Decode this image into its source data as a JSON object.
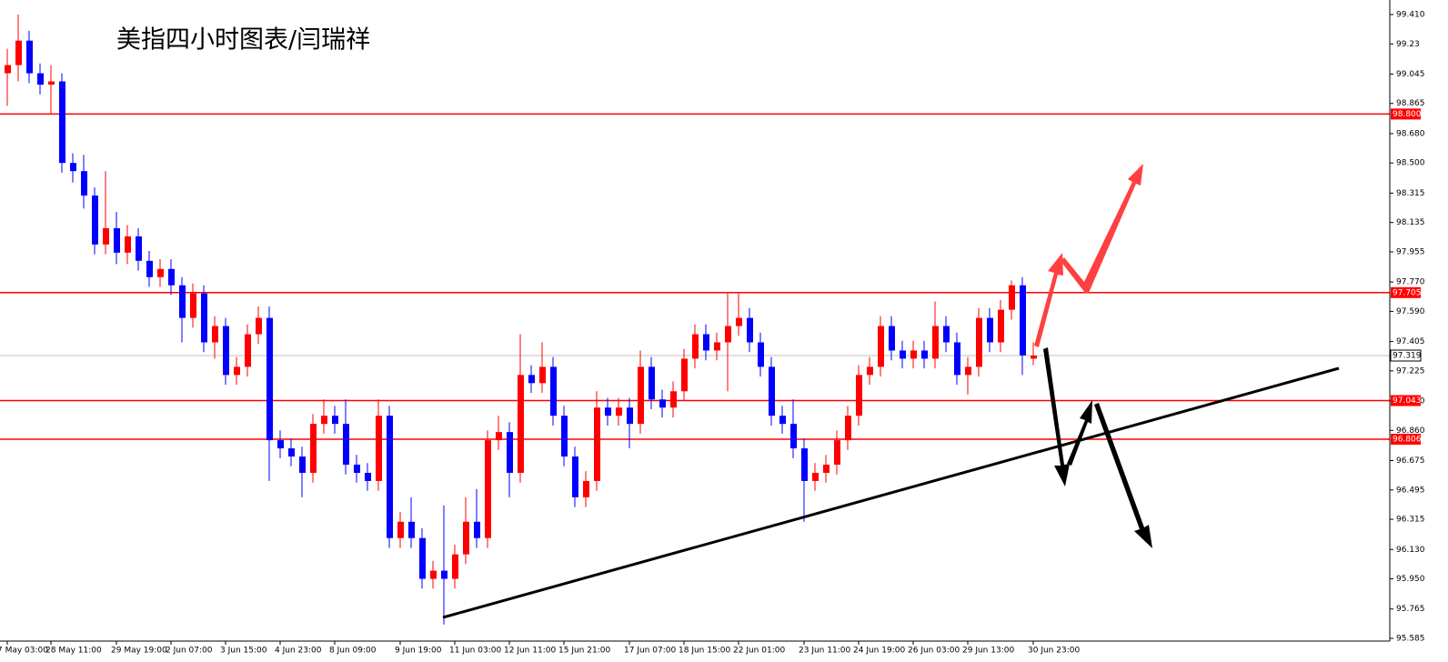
{
  "chart_data": {
    "type": "candlestick",
    "title": "美指四小时图表/闫瑞祥",
    "categories": [
      "7 May 03:00",
      null,
      null,
      null,
      "28 May 11:00",
      null,
      null,
      null,
      null,
      null,
      "29 May 19:00",
      null,
      null,
      null,
      null,
      "2 Jun 07:00",
      null,
      null,
      null,
      null,
      "3 Jun 15:00",
      null,
      null,
      null,
      null,
      "4 Jun 23:00",
      null,
      null,
      null,
      null,
      "8 Jun 09:00",
      null,
      null,
      null,
      null,
      null,
      "9 Jun 19:00",
      null,
      null,
      null,
      null,
      "11 Jun 03:00",
      null,
      null,
      null,
      null,
      "12 Jun 11:00",
      null,
      null,
      null,
      null,
      "15 Jun 21:00",
      null,
      null,
      null,
      null,
      null,
      "17 Jun 07:00",
      null,
      null,
      null,
      null,
      "18 Jun 15:00",
      null,
      null,
      null,
      null,
      "22 Jun 01:00",
      null,
      null,
      null,
      null,
      null,
      "23 Jun 11:00",
      null,
      null,
      null,
      null,
      "24 Jun 19:00",
      null,
      null,
      null,
      null,
      "26 Jun 03:00",
      null,
      null,
      null,
      null,
      "29 Jun 13:00",
      null,
      null,
      null,
      null,
      null,
      "30 Jun 23:00"
    ],
    "open": [
      99.05,
      99.1,
      99.25,
      99.05,
      98.98,
      99.0,
      98.5,
      98.45,
      98.3,
      98.0,
      98.1,
      97.95,
      98.05,
      97.9,
      97.8,
      97.85,
      97.75,
      97.55,
      97.7,
      97.4,
      97.5,
      97.2,
      97.25,
      97.45,
      97.55,
      96.8,
      96.75,
      96.7,
      96.6,
      96.9,
      96.95,
      96.9,
      96.65,
      96.6,
      96.55,
      96.95,
      96.2,
      96.3,
      96.2,
      95.95,
      96.0,
      95.95,
      96.1,
      96.3,
      96.2,
      96.8,
      96.85,
      96.6,
      97.2,
      97.15,
      97.25,
      96.95,
      96.7,
      96.45,
      96.55,
      97.0,
      96.95,
      97.0,
      96.9,
      97.25,
      97.05,
      97.0,
      97.1,
      97.3,
      97.45,
      97.35,
      97.4,
      97.5,
      97.55,
      97.4,
      97.25,
      96.95,
      96.9,
      96.75,
      96.55,
      96.6,
      96.65,
      96.8,
      96.95,
      97.2,
      97.25,
      97.5,
      97.35,
      97.3,
      97.35,
      97.3,
      97.5,
      97.4,
      97.2,
      97.25,
      97.55,
      97.4,
      97.6,
      97.75,
      97.3
    ],
    "high": [
      99.2,
      99.41,
      99.31,
      99.11,
      99.1,
      99.05,
      98.56,
      98.55,
      98.35,
      98.45,
      98.2,
      98.12,
      98.1,
      97.96,
      97.91,
      97.91,
      97.8,
      97.76,
      97.75,
      97.56,
      97.55,
      97.31,
      97.51,
      97.62,
      97.62,
      96.86,
      96.81,
      96.76,
      96.96,
      97.05,
      97.01,
      97.05,
      96.71,
      96.66,
      97.05,
      97.01,
      96.36,
      96.45,
      96.26,
      96.06,
      96.4,
      96.16,
      96.45,
      96.5,
      96.86,
      96.95,
      96.91,
      97.45,
      97.26,
      97.4,
      97.31,
      97.01,
      96.76,
      96.61,
      97.1,
      97.06,
      97.06,
      97.06,
      97.35,
      97.31,
      97.11,
      97.16,
      97.36,
      97.51,
      97.51,
      97.46,
      97.7,
      97.7,
      97.61,
      97.46,
      97.31,
      97.01,
      97.05,
      96.81,
      96.66,
      96.71,
      96.86,
      97.01,
      97.26,
      97.31,
      97.56,
      97.56,
      97.41,
      97.41,
      97.41,
      97.65,
      97.56,
      97.46,
      97.31,
      97.61,
      97.61,
      97.66,
      97.78,
      97.8,
      97.4
    ],
    "low": [
      98.85,
      99.0,
      98.99,
      98.92,
      98.8,
      98.44,
      98.38,
      98.22,
      97.94,
      97.94,
      97.88,
      97.88,
      97.84,
      97.74,
      97.74,
      97.69,
      97.4,
      97.49,
      97.34,
      97.3,
      97.14,
      97.14,
      97.19,
      97.39,
      96.55,
      96.69,
      96.64,
      96.45,
      96.54,
      96.84,
      96.84,
      96.59,
      96.54,
      96.49,
      96.49,
      96.14,
      96.14,
      96.14,
      95.89,
      95.89,
      95.67,
      95.89,
      96.04,
      96.14,
      96.14,
      96.74,
      96.45,
      96.54,
      97.09,
      97.09,
      96.89,
      96.64,
      96.39,
      96.39,
      96.49,
      96.89,
      96.89,
      96.75,
      96.84,
      96.99,
      96.94,
      96.94,
      97.04,
      97.24,
      97.29,
      97.29,
      97.1,
      97.44,
      97.34,
      97.19,
      96.89,
      96.84,
      96.69,
      96.3,
      96.49,
      96.54,
      96.59,
      96.74,
      96.89,
      97.14,
      97.19,
      97.29,
      97.24,
      97.24,
      97.24,
      97.24,
      97.34,
      97.14,
      97.08,
      97.19,
      97.34,
      97.34,
      97.54,
      97.2,
      97.26
    ],
    "close": [
      99.1,
      99.25,
      99.05,
      98.98,
      99.0,
      98.5,
      98.45,
      98.3,
      98.0,
      98.1,
      97.95,
      98.05,
      97.9,
      97.8,
      97.85,
      97.75,
      97.55,
      97.7,
      97.4,
      97.5,
      97.2,
      97.25,
      97.45,
      97.55,
      96.8,
      96.75,
      96.7,
      96.6,
      96.9,
      96.95,
      96.9,
      96.65,
      96.6,
      96.55,
      96.95,
      96.2,
      96.3,
      96.2,
      95.95,
      96.0,
      95.95,
      96.1,
      96.3,
      96.2,
      96.8,
      96.85,
      96.6,
      97.2,
      97.15,
      97.25,
      96.95,
      96.7,
      96.45,
      96.55,
      97.0,
      96.95,
      97.0,
      96.9,
      97.25,
      97.05,
      97.0,
      97.1,
      97.3,
      97.45,
      97.35,
      97.4,
      97.5,
      97.55,
      97.4,
      97.25,
      96.95,
      96.9,
      96.75,
      96.55,
      96.6,
      96.65,
      96.8,
      96.95,
      97.2,
      97.25,
      97.5,
      97.35,
      97.3,
      97.35,
      97.3,
      97.5,
      97.4,
      97.2,
      97.25,
      97.55,
      97.4,
      97.6,
      97.75,
      97.32,
      97.319
    ],
    "up_color": "#ff0000",
    "down_color": "#0000ff",
    "ylim": [
      95.585,
      99.41
    ],
    "yticks": [
      {
        "value": 99.41,
        "label": "99.410"
      },
      99.23,
      99.045,
      98.865,
      {
        "value": 98.68,
        "label": "98.680"
      },
      {
        "value": 98.5,
        "label": "98.500"
      },
      98.315,
      98.135,
      97.955,
      {
        "value": 97.77,
        "label": "97.770"
      },
      {
        "value": 97.59,
        "label": "97.590"
      },
      97.405,
      97.225,
      {
        "value": 97.04,
        "label": "97.040"
      },
      {
        "value": 96.86,
        "label": "96.860"
      },
      96.675,
      96.495,
      96.315,
      {
        "value": 96.13,
        "label": "96.130"
      },
      {
        "value": 95.95,
        "label": "95.950"
      },
      95.765,
      95.585
    ],
    "hlines": [
      {
        "value": 98.8,
        "label": "98.800"
      },
      97.705,
      97.043,
      96.806
    ],
    "hline_color": "#ff0000",
    "last_price": 97.319
  }
}
